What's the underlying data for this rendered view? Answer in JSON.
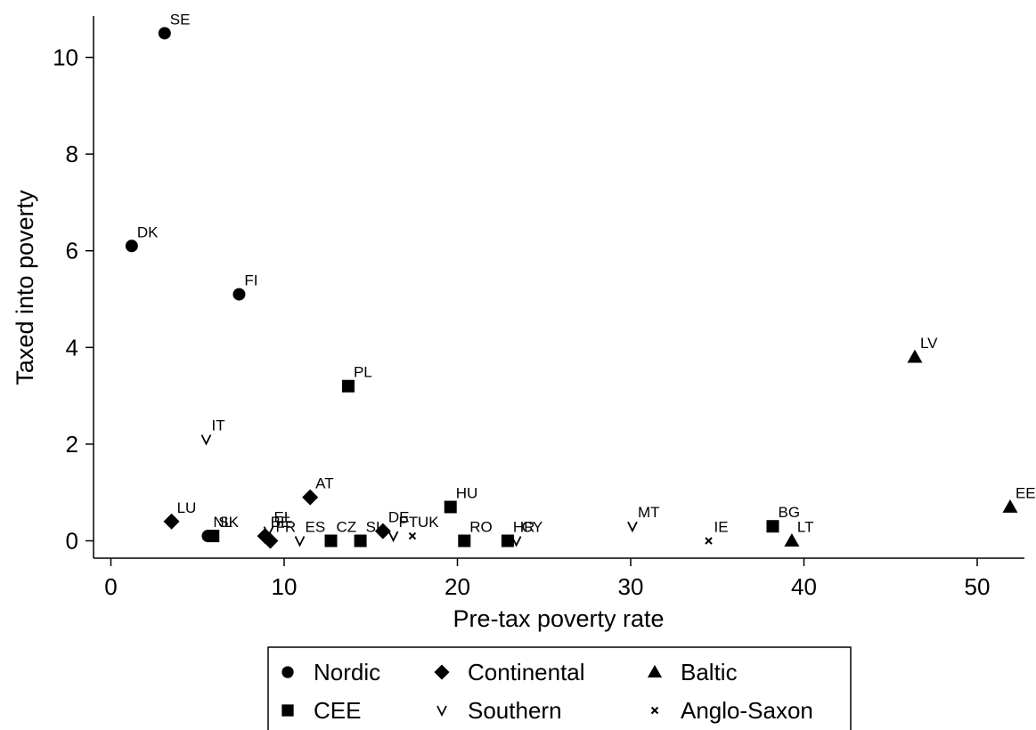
{
  "chart_data": {
    "type": "scatter",
    "xlabel": "Pre-tax poverty rate",
    "ylabel": "Taxed into poverty",
    "xlim": [
      -1,
      52.5
    ],
    "ylim": [
      -0.4,
      10.8
    ],
    "xticks": [
      0,
      10,
      20,
      30,
      40,
      50
    ],
    "yticks": [
      0,
      2,
      4,
      6,
      8,
      10
    ],
    "grid": false,
    "legend_position": "bottom",
    "series": [
      {
        "name": "Nordic",
        "marker": "circle",
        "points": [
          {
            "label": "SE",
            "x": 3.1,
            "y": 10.5
          },
          {
            "label": "DK",
            "x": 1.2,
            "y": 6.1
          },
          {
            "label": "FI",
            "x": 7.4,
            "y": 5.1
          },
          {
            "label": "NL",
            "x": 5.6,
            "y": 0.1
          }
        ]
      },
      {
        "name": "Continental",
        "marker": "diamond",
        "points": [
          {
            "label": "LU",
            "x": 3.5,
            "y": 0.4
          },
          {
            "label": "AT",
            "x": 11.5,
            "y": 0.9
          },
          {
            "label": "BE",
            "x": 8.9,
            "y": 0.1
          },
          {
            "label": "FR",
            "x": 9.2,
            "y": 0.0
          },
          {
            "label": "DE",
            "x": 15.7,
            "y": 0.2
          }
        ]
      },
      {
        "name": "Baltic",
        "marker": "triangle",
        "points": [
          {
            "label": "LV",
            "x": 46.4,
            "y": 3.8
          },
          {
            "label": "EE",
            "x": 51.9,
            "y": 0.7
          },
          {
            "label": "LT",
            "x": 39.3,
            "y": 0.0
          }
        ]
      },
      {
        "name": "CEE",
        "marker": "square",
        "points": [
          {
            "label": "PL",
            "x": 13.7,
            "y": 3.2
          },
          {
            "label": "HU",
            "x": 19.6,
            "y": 0.7
          },
          {
            "label": "SK",
            "x": 5.9,
            "y": 0.1
          },
          {
            "label": "CZ",
            "x": 12.7,
            "y": 0.0
          },
          {
            "label": "SI",
            "x": 14.4,
            "y": 0.0
          },
          {
            "label": "RO",
            "x": 20.4,
            "y": 0.0
          },
          {
            "label": "HR",
            "x": 22.9,
            "y": 0.0
          },
          {
            "label": "BG",
            "x": 38.2,
            "y": 0.3
          }
        ]
      },
      {
        "name": "Southern",
        "marker": "v",
        "points": [
          {
            "label": "IT",
            "x": 5.5,
            "y": 2.1
          },
          {
            "label": "EL",
            "x": 9.1,
            "y": 0.2
          },
          {
            "label": "ES",
            "x": 10.9,
            "y": 0.0
          },
          {
            "label": "PT",
            "x": 16.3,
            "y": 0.1
          },
          {
            "label": "CY",
            "x": 23.4,
            "y": 0.0
          },
          {
            "label": "MT",
            "x": 30.1,
            "y": 0.3
          }
        ]
      },
      {
        "name": "Anglo-Saxon",
        "marker": "x",
        "points": [
          {
            "label": "UK",
            "x": 17.4,
            "y": 0.1
          },
          {
            "label": "IE",
            "x": 34.5,
            "y": 0.0
          }
        ]
      }
    ]
  },
  "legend": {
    "rows": [
      [
        "Nordic",
        "Continental",
        "Baltic"
      ],
      [
        "CEE",
        "Southern",
        "Anglo-Saxon"
      ]
    ]
  }
}
